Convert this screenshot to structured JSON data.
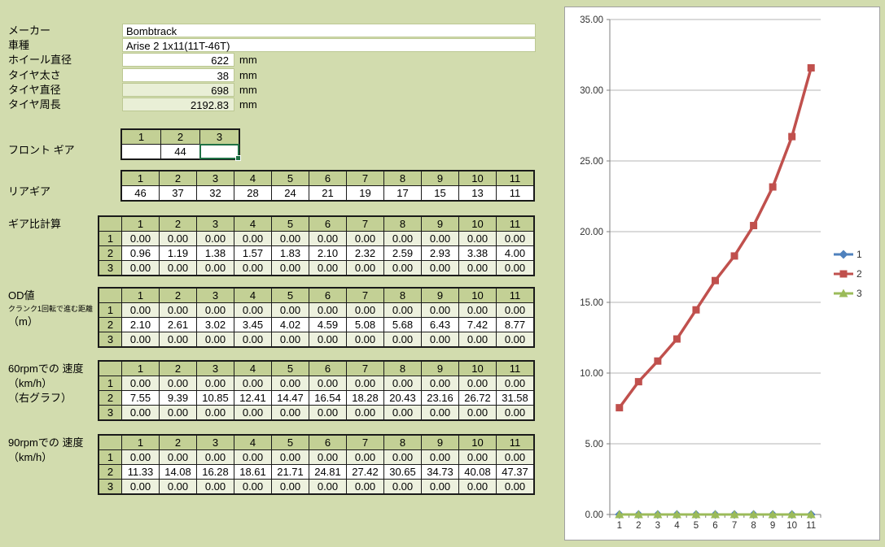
{
  "info": {
    "rows": [
      {
        "label": "メーカー",
        "value": "Bombtrack",
        "unit": ""
      },
      {
        "label": "車種",
        "value": "Arise 2 1x11(11T-46T)",
        "unit": ""
      },
      {
        "label": "ホイール直径",
        "value": "622",
        "unit": "mm"
      },
      {
        "label": "タイヤ太さ",
        "value": "38",
        "unit": "mm"
      },
      {
        "label": "タイヤ直径",
        "value": "698",
        "unit": "mm",
        "computed": true
      },
      {
        "label": "タイヤ周長",
        "value": "2192.83",
        "unit": "mm",
        "computed": true
      }
    ]
  },
  "front_gear": {
    "label": "フロント ギア",
    "headers": [
      "1",
      "2",
      "3"
    ],
    "values": [
      "",
      "44",
      ""
    ],
    "selected_col": 3
  },
  "rear_gear": {
    "label": "リアギア",
    "headers": [
      "1",
      "2",
      "3",
      "4",
      "5",
      "6",
      "7",
      "8",
      "9",
      "10",
      "11"
    ],
    "values": [
      "46",
      "37",
      "32",
      "28",
      "24",
      "21",
      "19",
      "17",
      "15",
      "13",
      "11"
    ]
  },
  "calc_tables": [
    {
      "id": "gear-ratio",
      "label_lines": [
        {
          "text": "ギア比計算"
        }
      ],
      "col_headers": [
        "1",
        "2",
        "3",
        "4",
        "5",
        "6",
        "7",
        "8",
        "9",
        "10",
        "11"
      ],
      "rows": [
        {
          "label": "1",
          "values": [
            "0.00",
            "0.00",
            "0.00",
            "0.00",
            "0.00",
            "0.00",
            "0.00",
            "0.00",
            "0.00",
            "0.00",
            "0.00"
          ]
        },
        {
          "label": "2",
          "values": [
            "0.96",
            "1.19",
            "1.38",
            "1.57",
            "1.83",
            "2.10",
            "2.32",
            "2.59",
            "2.93",
            "3.38",
            "4.00"
          ]
        },
        {
          "label": "3",
          "values": [
            "0.00",
            "0.00",
            "0.00",
            "0.00",
            "0.00",
            "0.00",
            "0.00",
            "0.00",
            "0.00",
            "0.00",
            "0.00"
          ]
        }
      ]
    },
    {
      "id": "od",
      "label_lines": [
        {
          "text": "OD値"
        },
        {
          "text": "クランク1回転で進む距離",
          "small": true
        },
        {
          "text": "（m）"
        }
      ],
      "col_headers": [
        "1",
        "2",
        "3",
        "4",
        "5",
        "6",
        "7",
        "8",
        "9",
        "10",
        "11"
      ],
      "rows": [
        {
          "label": "1",
          "values": [
            "0.00",
            "0.00",
            "0.00",
            "0.00",
            "0.00",
            "0.00",
            "0.00",
            "0.00",
            "0.00",
            "0.00",
            "0.00"
          ]
        },
        {
          "label": "2",
          "values": [
            "2.10",
            "2.61",
            "3.02",
            "3.45",
            "4.02",
            "4.59",
            "5.08",
            "5.68",
            "6.43",
            "7.42",
            "8.77"
          ]
        },
        {
          "label": "3",
          "values": [
            "0.00",
            "0.00",
            "0.00",
            "0.00",
            "0.00",
            "0.00",
            "0.00",
            "0.00",
            "0.00",
            "0.00",
            "0.00"
          ]
        }
      ]
    },
    {
      "id": "speed-60rpm",
      "label_lines": [
        {
          "text": "60rpmでの 速度"
        },
        {
          "text": "（km/h）"
        },
        {
          "text": "（右グラフ）"
        }
      ],
      "col_headers": [
        "1",
        "2",
        "3",
        "4",
        "5",
        "6",
        "7",
        "8",
        "9",
        "10",
        "11"
      ],
      "rows": [
        {
          "label": "1",
          "values": [
            "0.00",
            "0.00",
            "0.00",
            "0.00",
            "0.00",
            "0.00",
            "0.00",
            "0.00",
            "0.00",
            "0.00",
            "0.00"
          ]
        },
        {
          "label": "2",
          "values": [
            "7.55",
            "9.39",
            "10.85",
            "12.41",
            "14.47",
            "16.54",
            "18.28",
            "20.43",
            "23.16",
            "26.72",
            "31.58"
          ]
        },
        {
          "label": "3",
          "values": [
            "0.00",
            "0.00",
            "0.00",
            "0.00",
            "0.00",
            "0.00",
            "0.00",
            "0.00",
            "0.00",
            "0.00",
            "0.00"
          ]
        }
      ]
    },
    {
      "id": "speed-90rpm",
      "label_lines": [
        {
          "text": "90rpmでの 速度"
        },
        {
          "text": "（km/h）"
        }
      ],
      "col_headers": [
        "1",
        "2",
        "3",
        "4",
        "5",
        "6",
        "7",
        "8",
        "9",
        "10",
        "11"
      ],
      "rows": [
        {
          "label": "1",
          "values": [
            "0.00",
            "0.00",
            "0.00",
            "0.00",
            "0.00",
            "0.00",
            "0.00",
            "0.00",
            "0.00",
            "0.00",
            "0.00"
          ]
        },
        {
          "label": "2",
          "values": [
            "11.33",
            "14.08",
            "16.28",
            "18.61",
            "21.71",
            "24.81",
            "27.42",
            "30.65",
            "34.73",
            "40.08",
            "47.37"
          ]
        },
        {
          "label": "3",
          "values": [
            "0.00",
            "0.00",
            "0.00",
            "0.00",
            "0.00",
            "0.00",
            "0.00",
            "0.00",
            "0.00",
            "0.00",
            "0.00"
          ]
        }
      ]
    }
  ],
  "chart_data": {
    "type": "line",
    "categories": [
      "1",
      "2",
      "3",
      "4",
      "5",
      "6",
      "7",
      "8",
      "9",
      "10",
      "11"
    ],
    "series": [
      {
        "name": "1",
        "color": "#4f81bd",
        "marker": "diamond",
        "values": [
          0,
          0,
          0,
          0,
          0,
          0,
          0,
          0,
          0,
          0,
          0
        ]
      },
      {
        "name": "2",
        "color": "#c0504d",
        "marker": "square",
        "values": [
          7.55,
          9.39,
          10.85,
          12.41,
          14.47,
          16.54,
          18.28,
          20.43,
          23.16,
          26.72,
          31.58
        ]
      },
      {
        "name": "3",
        "color": "#9bbb59",
        "marker": "triangle",
        "values": [
          0,
          0,
          0,
          0,
          0,
          0,
          0,
          0,
          0,
          0,
          0
        ]
      }
    ],
    "title": "",
    "xlabel": "",
    "ylabel": "",
    "ylim": [
      0,
      35
    ],
    "ytick_step": 5,
    "ytick_labels": [
      "0.00",
      "5.00",
      "10.00",
      "15.00",
      "20.00",
      "25.00",
      "30.00",
      "35.00"
    ],
    "grid": true,
    "legend_position": "right"
  }
}
